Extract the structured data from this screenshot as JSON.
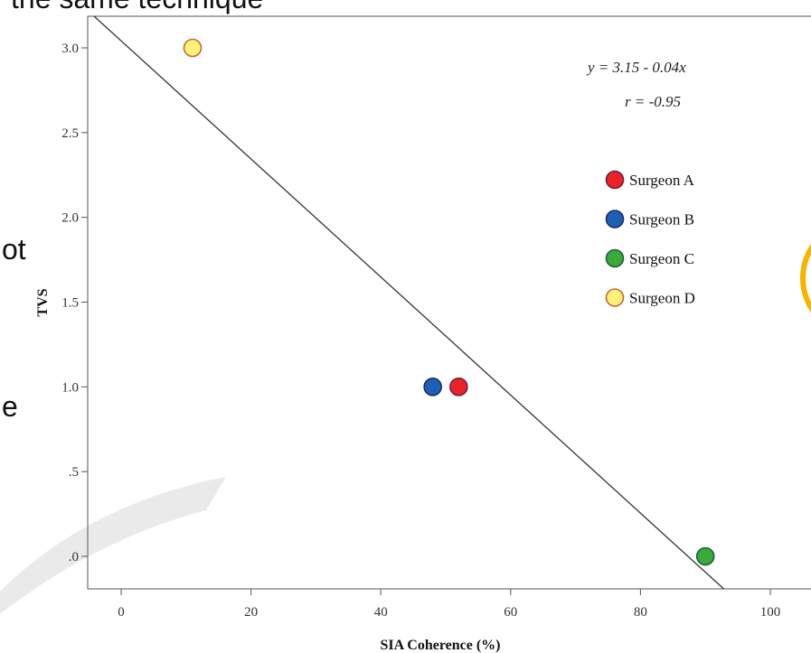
{
  "slide": {
    "top_fragment": "the same technique",
    "left_fragment_1": "ot",
    "left_fragment_2": "e"
  },
  "colors": {
    "surgeon_a": "#e8242a",
    "surgeon_b": "#1f5fb3",
    "surgeon_c": "#3aaa3a",
    "surgeon_d": "#fff27a",
    "accent_circle": "#f4b400",
    "regression_line": "#333333"
  },
  "chart_data": {
    "type": "scatter",
    "title": "",
    "xlabel": "SIA Coherence (%)",
    "ylabel": "TVS",
    "xlim": [
      -5,
      105
    ],
    "ylim": [
      -0.15,
      3.15
    ],
    "x_ticks": [
      0,
      20,
      40,
      60,
      80,
      100
    ],
    "x_tick_labels": [
      "0",
      "20",
      "40",
      "60",
      "80",
      "100"
    ],
    "y_ticks": [
      0,
      0.5,
      1.0,
      1.5,
      2.0,
      2.5,
      3.0
    ],
    "y_tick_labels": [
      ".0",
      ".5",
      "1.0",
      "1.5",
      "2.0",
      "2.5",
      "3.0"
    ],
    "grid": false,
    "legend_position": "right",
    "series": [
      {
        "name": "Surgeon A",
        "color": "#e8242a",
        "edge": "#7a1a3a",
        "points": [
          {
            "x": 52,
            "y": 1.0
          }
        ]
      },
      {
        "name": "Surgeon B",
        "color": "#1f5fb3",
        "edge": "#1a2e66",
        "points": [
          {
            "x": 48,
            "y": 1.0
          }
        ]
      },
      {
        "name": "Surgeon C",
        "color": "#3aaa3a",
        "edge": "#1f5f3a",
        "points": [
          {
            "x": 90,
            "y": 0.0
          }
        ]
      },
      {
        "name": "Surgeon D",
        "color": "#fff27a",
        "edge": "#c8653a",
        "points": [
          {
            "x": 11,
            "y": 3.0
          }
        ]
      }
    ],
    "regression": {
      "intercept": 3.15,
      "slope": -0.036
    },
    "annotations": [
      "y = 3.15 - 0.04x",
      "r = -0.95"
    ]
  }
}
